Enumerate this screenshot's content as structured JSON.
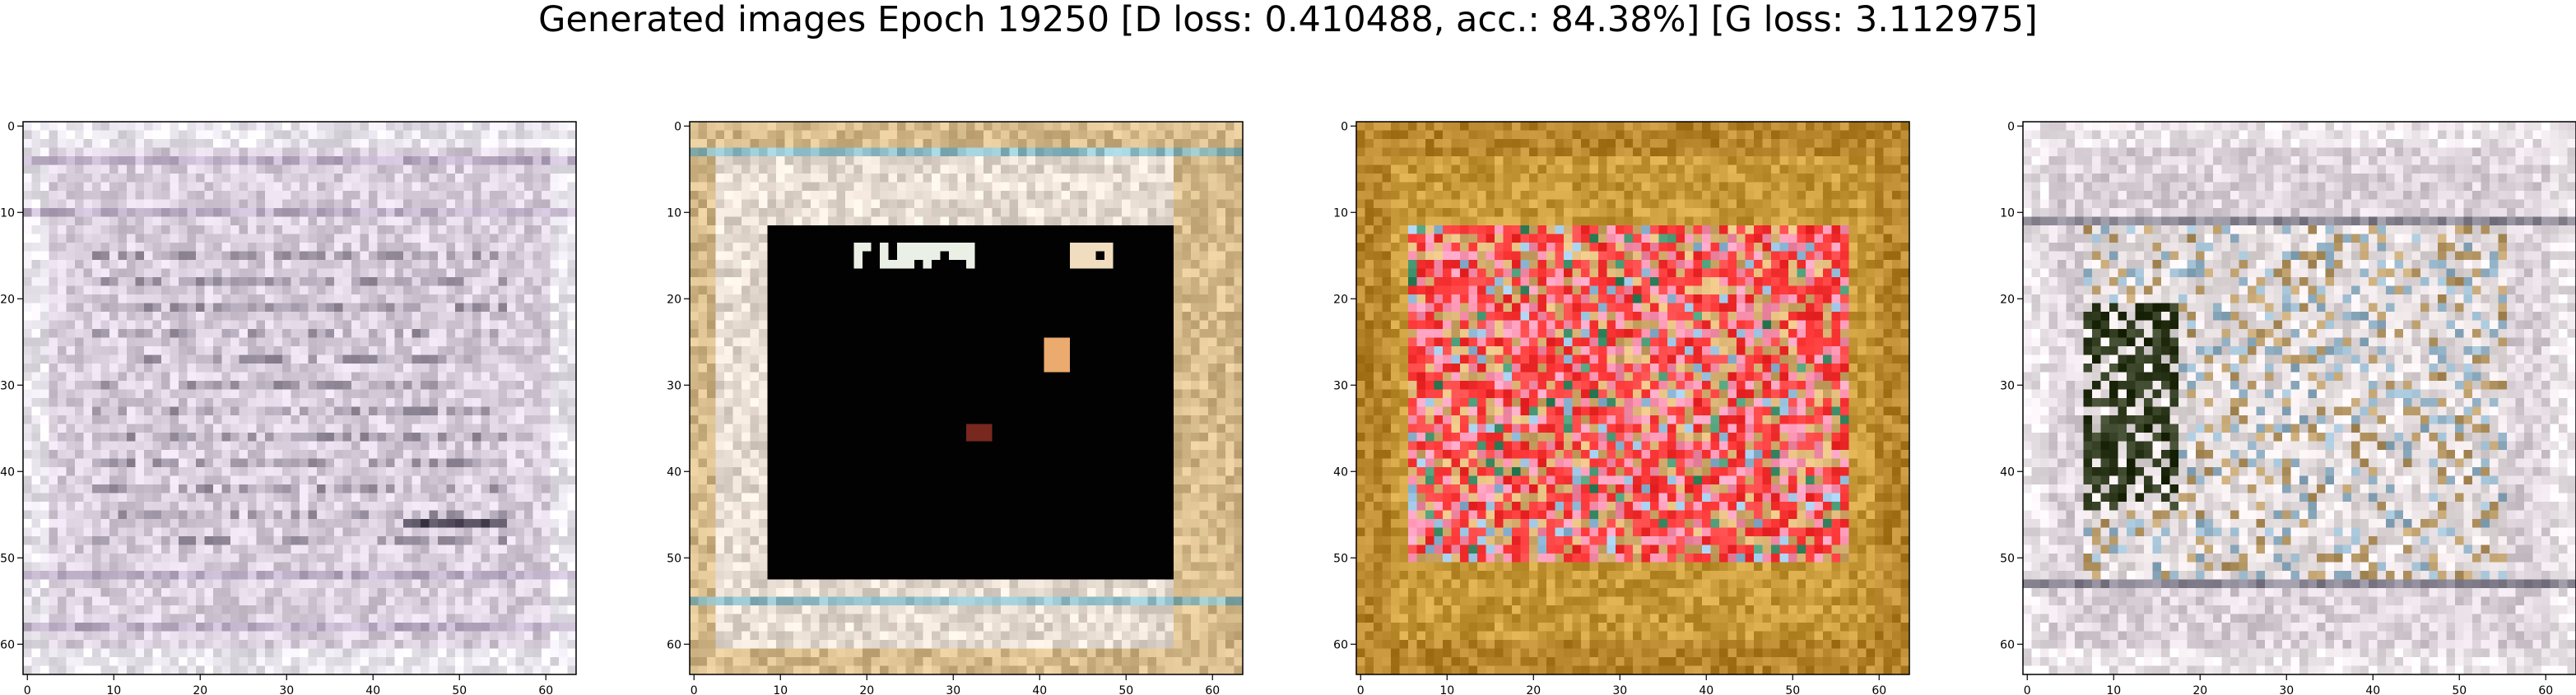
{
  "title": "Generated images Epoch 19250 [D loss: 0.410488, acc.: 84.38%] [G loss: 3.112975]",
  "chart_data": [
    {
      "type": "heatmap",
      "description_id": "sample-1",
      "xlim": [
        -0.5,
        63.5
      ],
      "ylim": [
        63.5,
        -0.5
      ],
      "xticks": [
        "0",
        "10",
        "20",
        "30",
        "40",
        "50",
        "60"
      ],
      "yticks": [
        "0",
        "10",
        "20",
        "30",
        "40",
        "50",
        "60"
      ],
      "palette": {
        "base": "#d9cfdc",
        "frame": "#eae6ee",
        "accent": "#b7a8c2",
        "dark": "#3a3446"
      }
    },
    {
      "type": "heatmap",
      "description_id": "sample-2",
      "xlim": [
        -0.5,
        63.5
      ],
      "ylim": [
        63.5,
        -0.5
      ],
      "xticks": [
        "0",
        "10",
        "20",
        "30",
        "40",
        "50",
        "60"
      ],
      "yticks": [
        "0",
        "10",
        "20",
        "30",
        "40",
        "50",
        "60"
      ],
      "palette": {
        "base": "#e6dcd2",
        "frame": "#c9a25a",
        "accent": "#6fb4c8",
        "dark": "#020202"
      }
    },
    {
      "type": "heatmap",
      "description_id": "sample-3",
      "xlim": [
        -0.5,
        63.5
      ],
      "ylim": [
        63.5,
        -0.5
      ],
      "xticks": [
        "0",
        "10",
        "20",
        "30",
        "40",
        "50",
        "60"
      ],
      "yticks": [
        "0",
        "10",
        "20",
        "30",
        "40",
        "50",
        "60"
      ],
      "palette": {
        "base": "#c99a3a",
        "frame": "#b8862c",
        "accent": "#ff3a3a",
        "dark": "#3e8f6a"
      }
    },
    {
      "type": "heatmap",
      "description_id": "sample-4",
      "xlim": [
        -0.5,
        63.5
      ],
      "ylim": [
        63.5,
        -0.5
      ],
      "xticks": [
        "0",
        "10",
        "20",
        "30",
        "40",
        "50",
        "60"
      ],
      "yticks": [
        "0",
        "10",
        "20",
        "30",
        "40",
        "50",
        "60"
      ],
      "palette": {
        "base": "#dcd2da",
        "frame": "#ece6ea",
        "accent": "#b89a68",
        "dark": "#2f3a1e"
      }
    }
  ]
}
